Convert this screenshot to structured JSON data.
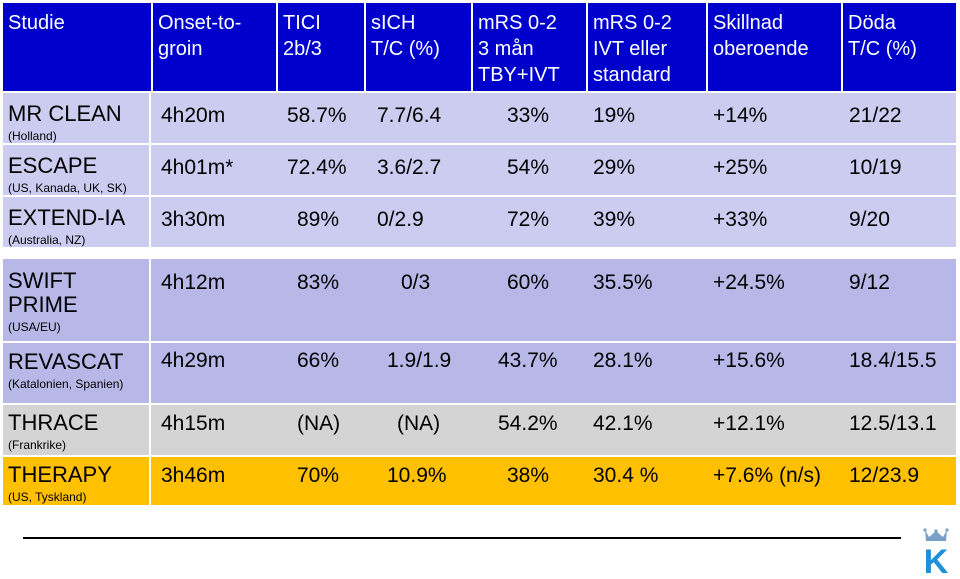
{
  "colors": {
    "header_bg": "#0000cc",
    "row_light": "#ccccf0",
    "row_dark": "#b8b8e8",
    "row_gray": "#d4d4d4",
    "row_highlight": "#ffc000",
    "logo_blue": "#1e8fd8"
  },
  "header": [
    "Studie",
    "Onset-to-\ngroin",
    "TICI\n2b/3",
    "sICH\nT/C (%)",
    "mRS 0-2\n3 mån\nTBY+IVT",
    "mRS 0-2\nIVT eller\nstandard",
    "Skillnad\noberoende",
    "Döda\nT/C (%)"
  ],
  "rows": [
    {
      "name": "MR CLEAN",
      "sub": "(Holland)",
      "onset": "4h20m",
      "tici": "58.7%",
      "sich": "7.7/6.4",
      "mrs_tby": "33%",
      "mrs_ivt": "19%",
      "diff": "+14%",
      "dead": "21/22"
    },
    {
      "name": "ESCAPE",
      "sub": "(US, Kanada, UK, SK)",
      "onset": "4h01m*",
      "tici": "72.4%",
      "sich": "3.6/2.7",
      "mrs_tby": "54%",
      "mrs_ivt": "29%",
      "diff": "+25%",
      "dead": "10/19"
    },
    {
      "name": "EXTEND-IA",
      "sub": "(Australia, NZ)",
      "onset": "3h30m",
      "tici": "89%",
      "sich": "0/2.9",
      "mrs_tby": "72%",
      "mrs_ivt": "39%",
      "diff": "+33%",
      "dead": "9/20"
    },
    {
      "name": "SWIFT\nPRIME",
      "sub": "(USA/EU)",
      "onset": "4h12m",
      "tici": "83%",
      "sich": "0/3",
      "mrs_tby": "60%",
      "mrs_ivt": "35.5%",
      "diff": "+24.5%",
      "dead": "9/12"
    },
    {
      "name": "REVASCAT",
      "sub": "(Katalonien, Spanien)",
      "onset": "4h29m",
      "tici": "66%",
      "sich": "1.9/1.9",
      "mrs_tby": "43.7%",
      "mrs_ivt": "28.1%",
      "diff": "+15.6%",
      "dead": "18.4/15.5"
    },
    {
      "name": "THRACE",
      "sub": "(Frankrike)",
      "onset": "4h15m",
      "tici": "(NA)",
      "sich": "(NA)",
      "mrs_tby": "54.2%",
      "mrs_ivt": "42.1%",
      "diff": "+12.1%",
      "dead": "12.5/13.1"
    },
    {
      "name": "THERAPY",
      "sub": "(US, Tyskland)",
      "onset": "3h46m",
      "tici": "70%",
      "sich": "10.9%",
      "mrs_tby": "38%",
      "mrs_ivt": "30.4 %",
      "diff": "+7.6% (n/s)",
      "dead": "12/23.9"
    }
  ],
  "logo": {
    "icon": "crown-k-logo",
    "letter": "K"
  }
}
